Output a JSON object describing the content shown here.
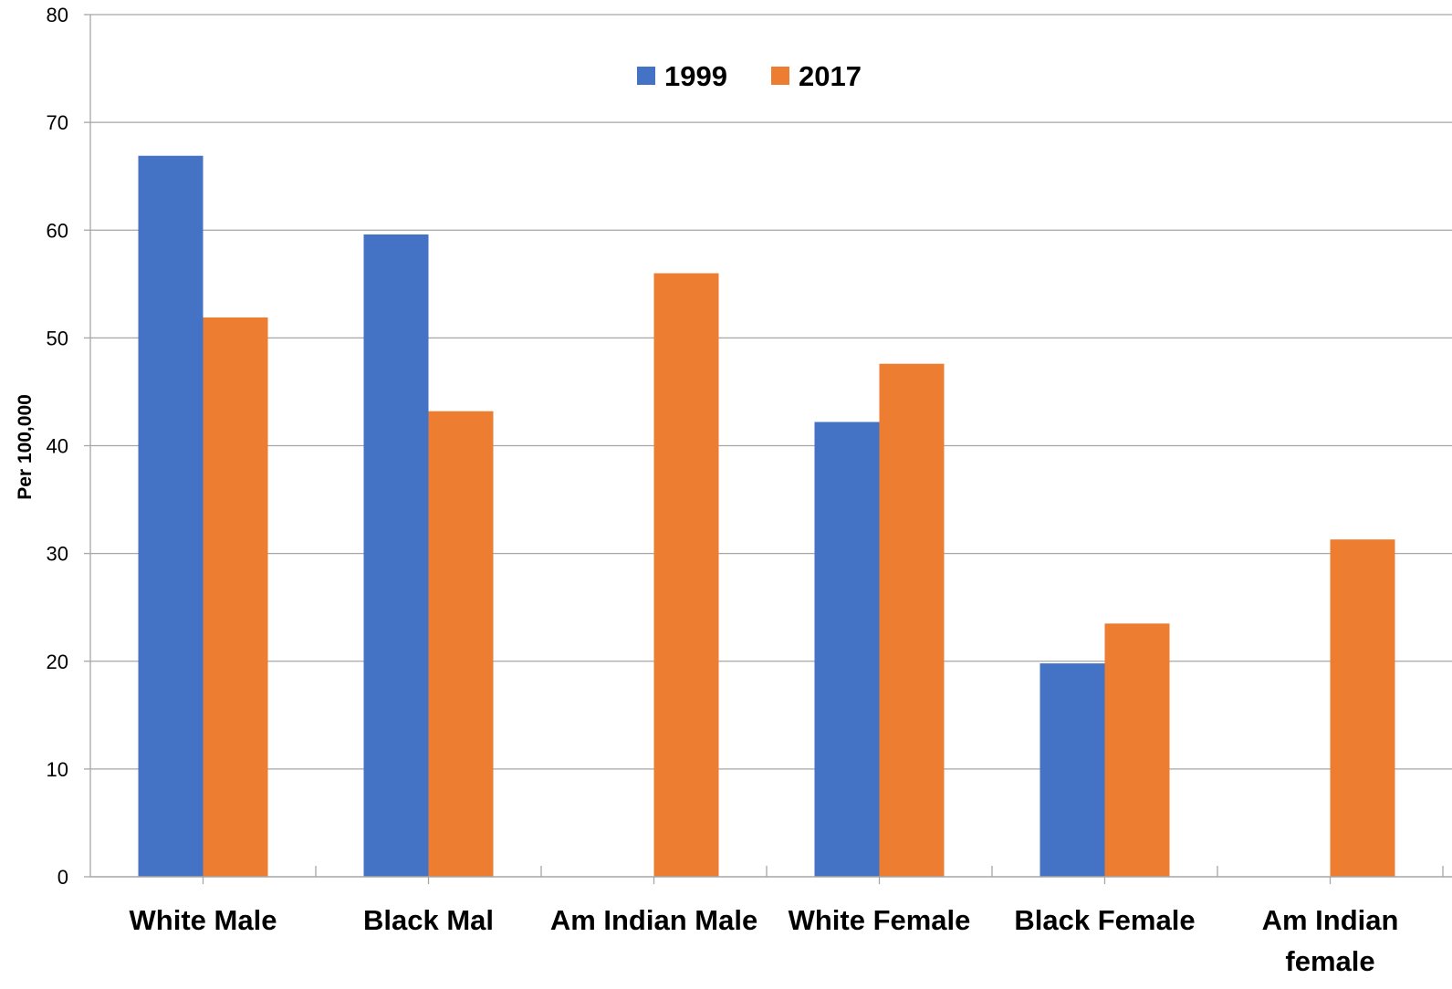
{
  "chart_data": {
    "type": "bar",
    "title": "",
    "xlabel": "",
    "ylabel": "Per 100,000",
    "ylim": [
      0,
      80
    ],
    "yticks": [
      "0",
      "10",
      "20",
      "30",
      "40",
      "50",
      "60",
      "70",
      "80"
    ],
    "grid": true,
    "legend_position": "top-center",
    "categories": [
      [
        "White Male"
      ],
      [
        "Black Mal"
      ],
      [
        "Am Indian Male"
      ],
      [
        "White Female"
      ],
      [
        "Black Female"
      ],
      [
        "Am Indian",
        "female"
      ]
    ],
    "series": [
      {
        "name": "1999",
        "color": "#4472C4",
        "values": [
          66.9,
          59.6,
          null,
          42.2,
          19.8,
          null
        ]
      },
      {
        "name": "2017",
        "color": "#ED7D31",
        "values": [
          51.9,
          43.2,
          56.0,
          47.6,
          23.5,
          31.3
        ]
      }
    ]
  }
}
